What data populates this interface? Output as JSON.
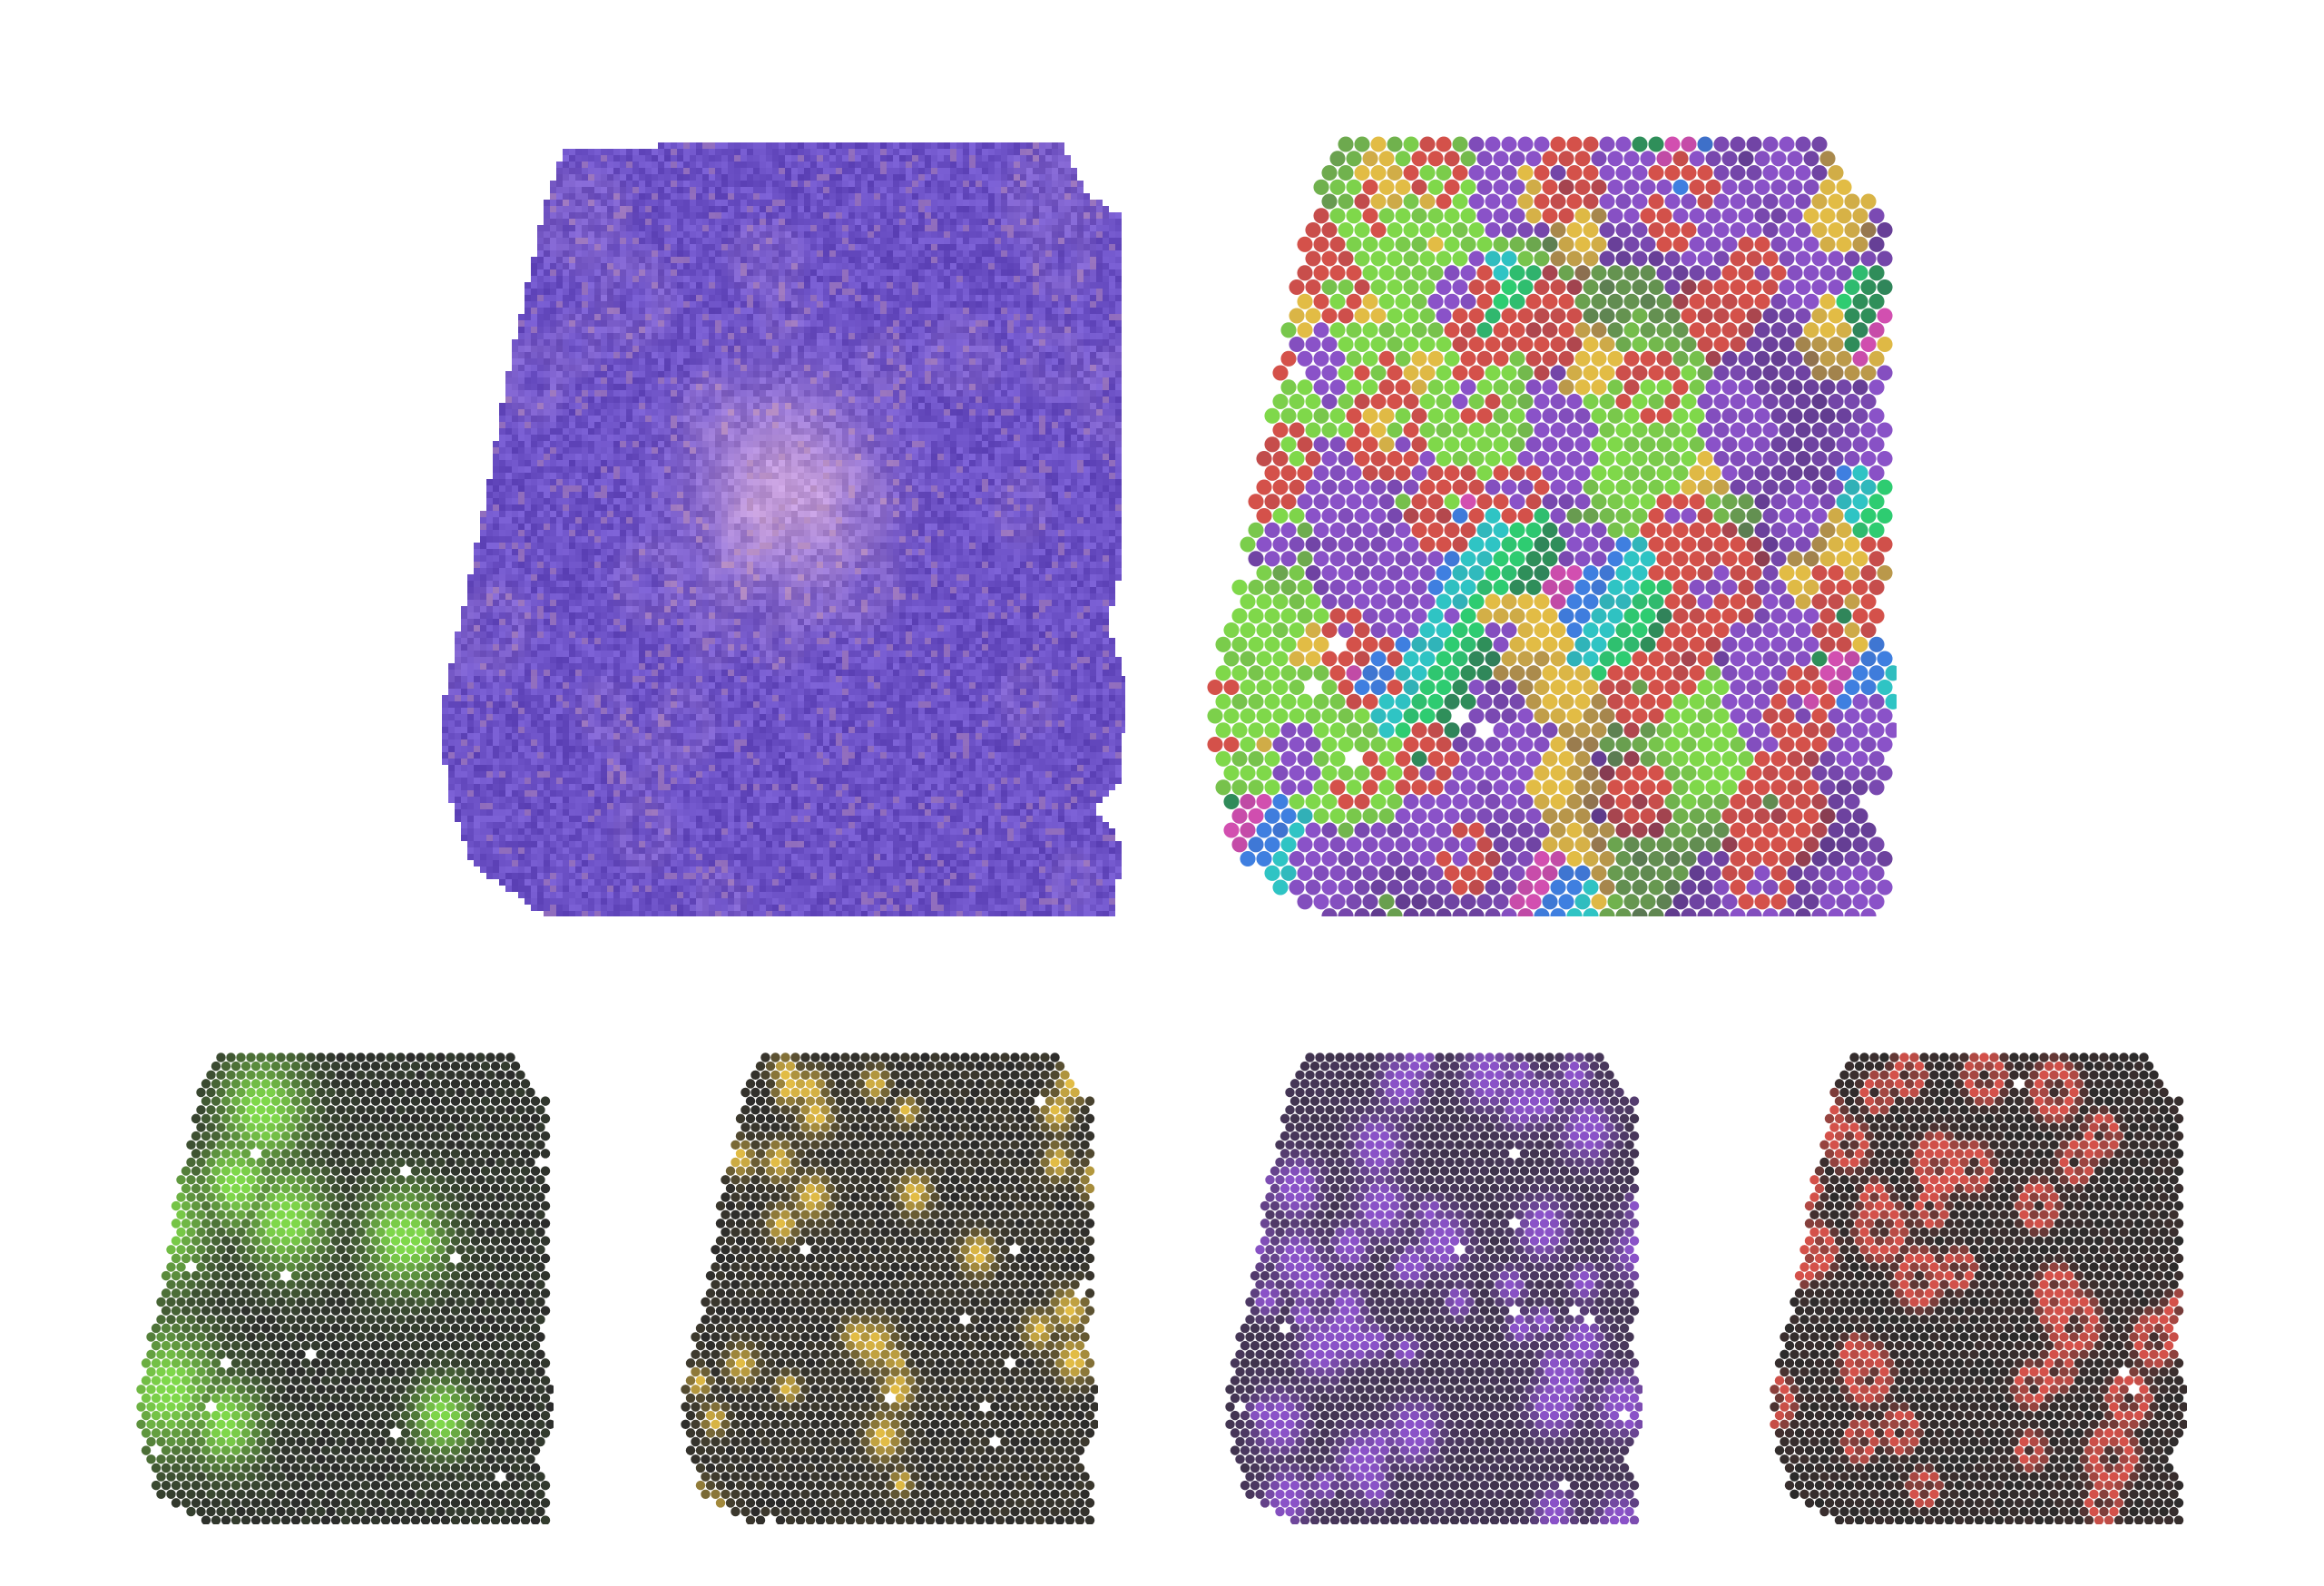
{
  "figure": {
    "he_panel": {
      "kind": "H&E histology tissue section",
      "tissue_color": "#6a4fc4",
      "stroma_color": "#c9a0d8"
    },
    "composite_panel": {
      "kind": "spatial spot map, multichannel composite"
    },
    "channels": [
      {
        "color_name": "green",
        "color": "#7fd84a"
      },
      {
        "color_name": "yellow",
        "color": "#e2bc45"
      },
      {
        "color_name": "purple",
        "color": "#8a52c8"
      },
      {
        "color_name": "red",
        "color": "#d4514a"
      }
    ],
    "extra_composite_colors": [
      "#3f7fe0",
      "#2fc4c4",
      "#2ecc71",
      "#2f8f5a",
      "#d24fb0"
    ],
    "background_spot_color": "#2b2b2b"
  }
}
